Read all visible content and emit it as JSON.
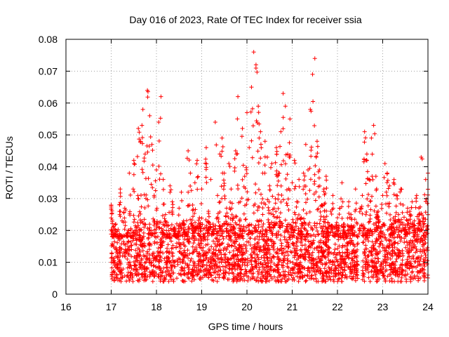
{
  "chart_data": {
    "type": "scatter",
    "title": "Day 016 of 2023, Rate Of TEC Index for receiver ssia",
    "xlabel": "GPS time / hours",
    "ylabel": "ROTI / TECUs",
    "xlim": [
      16,
      24
    ],
    "ylim": [
      0,
      0.08
    ],
    "xticks": [
      16,
      17,
      18,
      19,
      20,
      21,
      22,
      23,
      24
    ],
    "yticks": [
      "0",
      "0.01",
      "0.02",
      "0.03",
      "0.04",
      "0.05",
      "0.06",
      "0.07",
      "0.08"
    ],
    "grid": true,
    "marker": "+",
    "color": "#ff0000",
    "series": [
      {
        "name": "ROTI",
        "x": [
          17.0,
          17.05,
          17.1,
          17.15,
          17.2,
          17.25,
          17.3,
          17.35,
          17.4,
          17.45,
          17.5,
          17.55,
          17.6,
          17.65,
          17.7,
          17.75,
          17.8,
          17.85,
          17.9,
          17.95,
          18.0,
          18.05,
          18.1,
          18.15,
          18.2,
          18.25,
          18.3,
          18.35,
          18.4,
          18.45,
          18.5,
          18.55,
          18.6,
          18.65,
          18.7,
          18.75,
          18.8,
          18.85,
          18.9,
          18.95,
          19.0,
          19.05,
          19.1,
          19.15,
          19.2,
          19.25,
          19.3,
          19.35,
          19.4,
          19.45,
          19.5,
          19.55,
          19.6,
          19.65,
          19.7,
          19.75,
          19.8,
          19.85,
          19.9,
          19.95,
          20.0,
          20.05,
          20.1,
          20.15,
          20.2,
          20.25,
          20.3,
          20.35,
          20.4,
          20.45,
          20.5,
          20.55,
          20.6,
          20.65,
          20.7,
          20.75,
          20.8,
          20.85,
          20.9,
          20.95,
          21.0,
          21.05,
          21.1,
          21.15,
          21.2,
          21.25,
          21.3,
          21.35,
          21.4,
          21.45,
          21.5,
          21.55,
          21.6,
          21.65,
          21.7,
          21.75,
          21.8,
          21.85,
          21.9,
          21.95,
          22.0,
          22.05,
          22.1,
          22.15,
          22.2,
          22.25,
          22.3,
          22.35,
          22.4,
          22.45,
          22.5,
          22.55,
          22.6,
          22.65,
          22.7,
          22.75,
          22.8,
          22.85,
          22.9,
          22.95,
          23.0,
          23.05,
          23.1,
          23.15,
          23.2,
          23.25,
          23.3,
          23.35,
          23.4,
          23.45,
          23.5,
          23.55,
          23.6,
          23.65,
          23.7,
          23.75,
          23.8,
          23.85,
          23.9,
          23.95,
          24.0
        ],
        "y": [
          0.028,
          0.015,
          0.022,
          0.018,
          0.033,
          0.012,
          0.027,
          0.019,
          0.038,
          0.014,
          0.042,
          0.021,
          0.052,
          0.048,
          0.058,
          0.044,
          0.064,
          0.056,
          0.047,
          0.031,
          0.039,
          0.054,
          0.062,
          0.036,
          0.025,
          0.018,
          0.034,
          0.029,
          0.021,
          0.016,
          0.027,
          0.032,
          0.023,
          0.019,
          0.045,
          0.038,
          0.028,
          0.035,
          0.042,
          0.024,
          0.033,
          0.017,
          0.046,
          0.026,
          0.036,
          0.022,
          0.054,
          0.031,
          0.044,
          0.049,
          0.038,
          0.027,
          0.041,
          0.033,
          0.024,
          0.045,
          0.062,
          0.029,
          0.052,
          0.037,
          0.057,
          0.046,
          0.065,
          0.076,
          0.072,
          0.059,
          0.051,
          0.038,
          0.048,
          0.043,
          0.034,
          0.041,
          0.027,
          0.046,
          0.038,
          0.051,
          0.063,
          0.059,
          0.044,
          0.055,
          0.035,
          0.042,
          0.029,
          0.036,
          0.024,
          0.038,
          0.047,
          0.039,
          0.058,
          0.069,
          0.074,
          0.048,
          0.039,
          0.028,
          0.033,
          0.037,
          0.021,
          0.026,
          0.031,
          0.019,
          0.024,
          0.027,
          0.035,
          0.022,
          0.018,
          0.029,
          0.025,
          0.021,
          0.033,
          0.016,
          0.027,
          0.031,
          0.051,
          0.044,
          0.036,
          0.049,
          0.053,
          0.037,
          0.026,
          0.018,
          0.031,
          0.041,
          0.038,
          0.034,
          0.022,
          0.036,
          0.031,
          0.025,
          0.033,
          0.028,
          0.021,
          0.027,
          0.026,
          0.029,
          0.023,
          0.031,
          0.027,
          0.043,
          0.024,
          0.036,
          0.038
        ]
      }
    ],
    "dense_band": {
      "x_range": [
        17.0,
        24.0
      ],
      "gap": [
        22.45,
        22.55
      ],
      "y_range": [
        0.005,
        0.022
      ]
    }
  }
}
